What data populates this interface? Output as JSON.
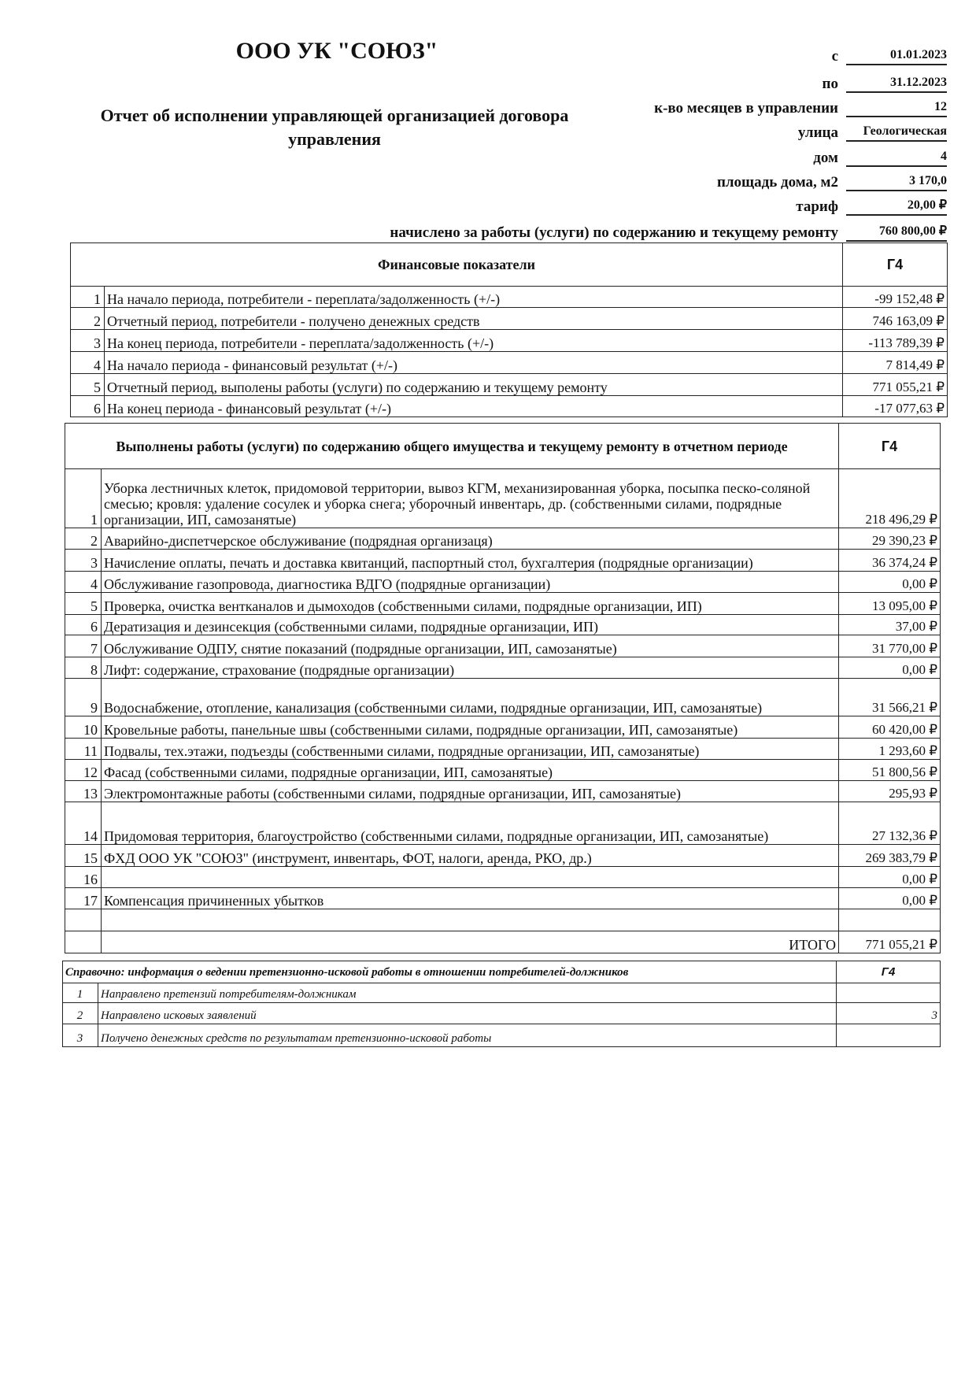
{
  "header": {
    "org_name": "ООО УК \"СОЮЗ\"",
    "report_title": "Отчет об исполнении управляющей организацией договора управления",
    "fields": [
      {
        "label": "с",
        "value": "01.01.2023"
      },
      {
        "label": "по",
        "value": "31.12.2023"
      },
      {
        "label": "к-во месяцев в управлении",
        "value": "12"
      },
      {
        "label": "улица",
        "value": "Геологическая"
      },
      {
        "label": "дом",
        "value": "4"
      },
      {
        "label": "площадь дома, м2",
        "value": "3 170,0"
      },
      {
        "label": "тариф",
        "value": "20,00 ₽"
      },
      {
        "label": "начислено за работы (услуги) по содержанию и текущему ремонту",
        "value": "760 800,00 ₽"
      }
    ]
  },
  "financial": {
    "header": "Финансовые показатели",
    "column": "Г4",
    "rows": [
      {
        "num": "1",
        "label": "На начало периода, потребители - переплата/задолженность (+/-)",
        "value": "-99 152,48 ₽"
      },
      {
        "num": "2",
        "label": "Отчетный период, потребители - получено денежных средств",
        "value": "746 163,09 ₽"
      },
      {
        "num": "3",
        "label": "На конец периода, потребители - переплата/задолженность (+/-)",
        "value": "-113 789,39 ₽"
      },
      {
        "num": "4",
        "label": "На начало периода - финансовый результат (+/-)",
        "value": "7 814,49 ₽"
      },
      {
        "num": "5",
        "label": "Отчетный период, выполены работы (услуги) по содержанию и текущему ремонту",
        "value": "771 055,21 ₽"
      },
      {
        "num": "6",
        "label": "На конец периода - финансовый результат (+/-)",
        "value": "-17 077,63 ₽"
      }
    ]
  },
  "works": {
    "header": "Выполнены работы (услуги) по содержанию общего имущества и текущему ремонту в отчетном периоде",
    "column": "Г4",
    "rows": [
      {
        "num": "1",
        "label": "Уборка лестничных клеток, придомовой территории, вывоз КГМ, механизированная уборка, посыпка песко-соляной смесью; кровля: удаление сосулек и уборка снега; уборочный инвентарь, др. (собственными силами, подрядные организации, ИП, самозанятые)",
        "value": "218 496,29 ₽"
      },
      {
        "num": "2",
        "label": "Аварийно-диспетчерское обслуживание (подрядная организаця)",
        "value": "29 390,23 ₽"
      },
      {
        "num": "3",
        "label": "Начисление оплаты, печать и доставка квитанций, паспортный стол, бухгалтерия (подрядные организации)",
        "value": "36 374,24 ₽"
      },
      {
        "num": "4",
        "label": "Обслуживание газопровода, диагностика ВДГО (подрядные организации)",
        "value": "0,00 ₽"
      },
      {
        "num": "5",
        "label": "Проверка, очистка вентканалов и дымоходов (собственными силами, подрядные организации, ИП)",
        "value": "13 095,00 ₽"
      },
      {
        "num": "6",
        "label": "Дератизация и дезинсекция (собственными силами, подрядные организации, ИП)",
        "value": "37,00 ₽"
      },
      {
        "num": "7",
        "label": "Обслуживание ОДПУ, снятие показаний (подрядные организации, ИП, самозанятые)",
        "value": "31 770,00 ₽"
      },
      {
        "num": "8",
        "label": "Лифт: содержание, страхование (подрядные организации)",
        "value": "0,00 ₽"
      },
      {
        "num": "9",
        "label": "Водоснабжение, отопление, канализация  (собственными силами, подрядные организации, ИП, самозанятые)",
        "value": "31 566,21 ₽"
      },
      {
        "num": "10",
        "label": "Кровельные работы, панельные швы (собственными силами, подрядные организации, ИП, самозанятые)",
        "value": "60 420,00 ₽"
      },
      {
        "num": "11",
        "label": "Подвалы, тех.этажи, подъезды (собственными силами, подрядные организации, ИП, самозанятые)",
        "value": "1 293,60 ₽"
      },
      {
        "num": "12",
        "label": "Фасад (собственными силами, подрядные организации, ИП, самозанятые)",
        "value": "51 800,56 ₽"
      },
      {
        "num": "13",
        "label": "Электромонтажные работы (собственными силами, подрядные организации, ИП, самозанятые)",
        "value": "295,93 ₽"
      },
      {
        "num": "14",
        "label": "Придомовая территория, благоустройство (собственными силами, подрядные организации, ИП, самозанятые)",
        "value": "27 132,36 ₽"
      },
      {
        "num": "15",
        "label": "ФХД ООО УК \"СОЮЗ\" (инструмент, инвентарь, ФОТ, налоги, аренда, РКО, др.)",
        "value": "269 383,79 ₽"
      },
      {
        "num": "16",
        "label": "",
        "value": "0,00 ₽"
      },
      {
        "num": "17",
        "label": "Компенсация причиненных убытков",
        "value": "0,00 ₽"
      },
      {
        "num": "",
        "label": "",
        "value": ""
      }
    ],
    "total_label": "ИТОГО",
    "total_value": "771 055,21 ₽"
  },
  "claims": {
    "header": "Справочно: информация о ведении претензионно-исковой работы в отношении потребителей-должников",
    "column": "Г4",
    "rows": [
      {
        "num": "1",
        "label": "Направлено претензий потребителям-должникам",
        "value": ""
      },
      {
        "num": "2",
        "label": "Направлено исковых заявлений",
        "value": "3"
      },
      {
        "num": "3",
        "label": "Получено денежных средств по результатам претензионно-исковой работы",
        "value": ""
      }
    ]
  }
}
